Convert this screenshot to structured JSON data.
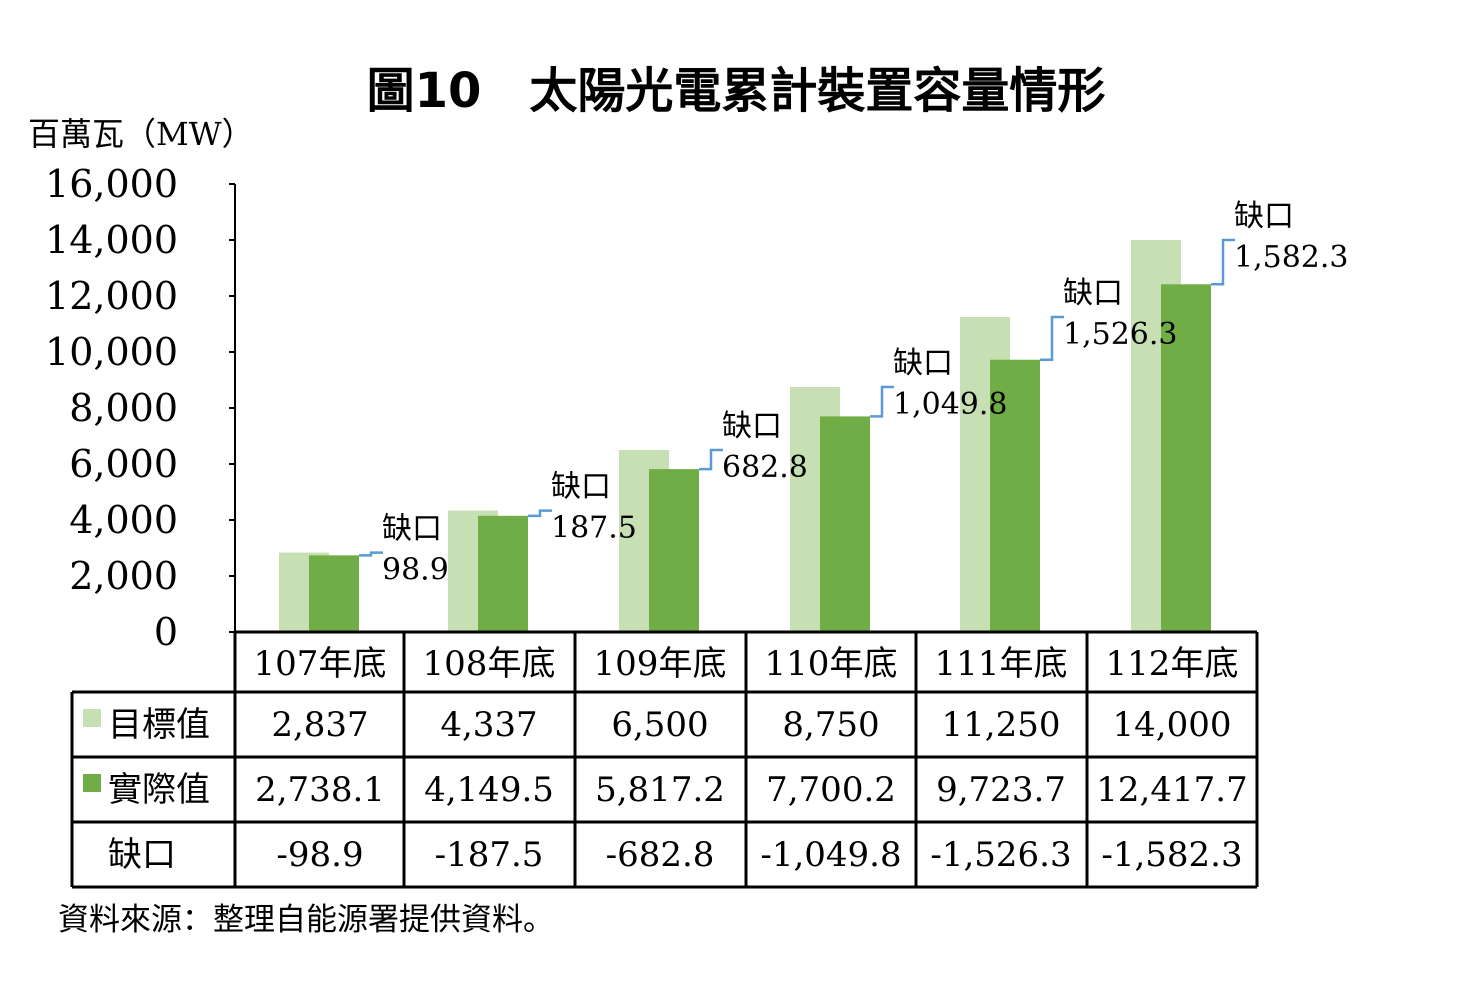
{
  "title": "圖10　太陽光電累計裝置容量情形",
  "y_unit_label": "百萬瓦（MW）",
  "source_note": "資料來源：整理自能源署提供資料。",
  "colors": {
    "target": "#c6e0b4",
    "actual": "#70ad47",
    "gap_connector": "#5b9bd5",
    "grid_line": "#000000"
  },
  "chart_data": {
    "type": "bar",
    "title": "圖10　太陽光電累計裝置容量情形",
    "ylabel": "百萬瓦（MW）",
    "xlabel": "",
    "ylim": [
      0,
      16000
    ],
    "yticks": [
      0,
      2000,
      4000,
      6000,
      8000,
      10000,
      12000,
      14000,
      16000
    ],
    "ytick_labels": [
      "0",
      "2,000",
      "4,000",
      "6,000",
      "8,000",
      "10,000",
      "12,000",
      "14,000",
      "16,000"
    ],
    "categories": [
      "107年底",
      "108年底",
      "109年底",
      "110年底",
      "111年底",
      "112年底"
    ],
    "series": [
      {
        "name": "目標值",
        "values": [
          2837,
          4337,
          6500,
          8750,
          11250,
          14000
        ],
        "labels": [
          "2,837",
          "4,337",
          "6,500",
          "8,750",
          "11,250",
          "14,000"
        ]
      },
      {
        "name": "實際值",
        "values": [
          2738.1,
          4149.5,
          5817.2,
          7700.2,
          9723.7,
          12417.7
        ],
        "labels": [
          "2,738.1",
          "4,149.5",
          "5,817.2",
          "7,700.2",
          "9,723.7",
          "12,417.7"
        ]
      }
    ],
    "gap_row_label": "缺口",
    "gap_values": [
      "-98.9",
      "-187.5",
      "-682.8",
      "-1,049.8",
      "-1,526.3",
      "-1,582.3"
    ],
    "gap_annotation_label": "缺口",
    "gap_annotations": [
      "98.9",
      "187.5",
      "682.8",
      "1,049.8",
      "1,526.3",
      "1,582.3"
    ],
    "grid": false,
    "legend": "data-table"
  }
}
